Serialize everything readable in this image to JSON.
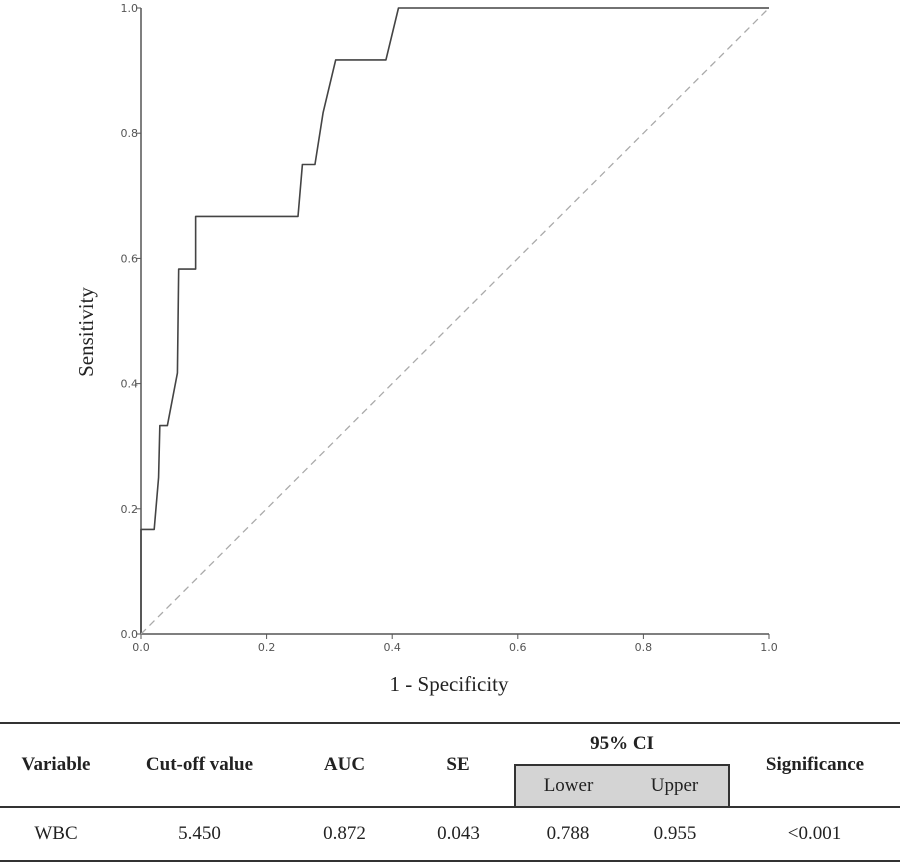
{
  "chart_data": {
    "type": "line",
    "xlabel": "1 - Specificity",
    "ylabel": "Sensitivity",
    "xlim": [
      0,
      1
    ],
    "ylim": [
      0,
      1
    ],
    "xticks": [
      "0.0",
      "0.2",
      "0.4",
      "0.6",
      "0.8",
      "1.0"
    ],
    "yticks": [
      "0.0",
      "0.2",
      "0.4",
      "0.6",
      "0.8",
      "1.0"
    ],
    "grid": false,
    "series": [
      {
        "style": "solid",
        "color": "#444444",
        "x": [
          0,
          0,
          0.021,
          0.028,
          0.03,
          0.042,
          0.058,
          0.06,
          0.087,
          0.087,
          0.25,
          0.257,
          0.277,
          0.29,
          0.31,
          0.39,
          0.41,
          1.0
        ],
        "y": [
          0,
          0.167,
          0.167,
          0.25,
          0.333,
          0.333,
          0.417,
          0.583,
          0.583,
          0.667,
          0.667,
          0.75,
          0.75,
          0.833,
          0.917,
          0.917,
          1.0,
          1.0
        ]
      },
      {
        "style": "dashed",
        "color": "#aaaaaa",
        "x": [
          0,
          1
        ],
        "y": [
          0,
          1
        ]
      }
    ]
  },
  "table": {
    "headers": {
      "variable": "Variable",
      "cutoff": "Cut-off value",
      "auc": "AUC",
      "se": "SE",
      "ci": "95% CI",
      "lower": "Lower",
      "upper": "Upper",
      "significance": "Significance"
    },
    "rows": [
      {
        "variable": "WBC",
        "cutoff": "5.450",
        "auc": "0.872",
        "se": "0.043",
        "lower": "0.788",
        "upper": "0.955",
        "significance": "<0.001"
      }
    ]
  }
}
